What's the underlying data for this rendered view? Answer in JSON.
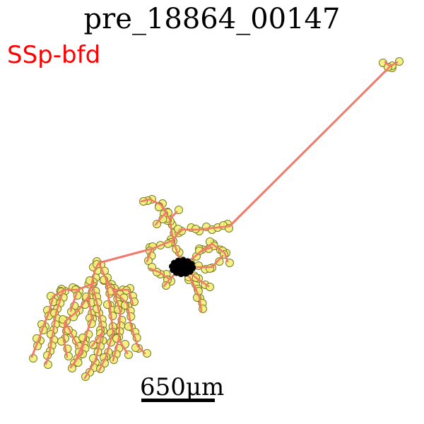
{
  "title": "pre_18864_00147",
  "region_label": "SSp-bfd",
  "scale_bar_label": "650μm",
  "colors": {
    "axon": "#f37a6b",
    "bouton_fill": "#f2f07a",
    "bouton_stroke": "#7a7a20",
    "soma": "#000000",
    "region_label": "#ff0000"
  }
}
